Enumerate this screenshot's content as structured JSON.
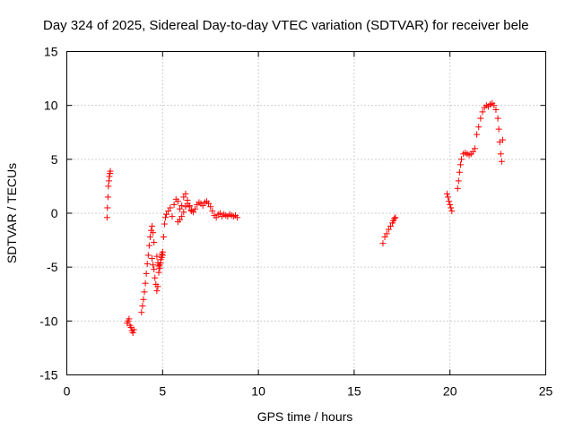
{
  "chart_data": {
    "type": "scatter",
    "title": "Day 324 of 2025, Sidereal Day-to-day VTEC variation (SDTVAR) for receiver bele",
    "xlabel": "GPS time / hours",
    "ylabel": "SDTVAR / TECUs",
    "xlim": [
      0,
      25
    ],
    "ylim": [
      -15,
      15
    ],
    "xticks": [
      "0",
      "5",
      "10",
      "15",
      "20",
      "25"
    ],
    "yticks": [
      "15",
      "10",
      "5",
      "0",
      "-5",
      "-10",
      "-15"
    ],
    "grid": true,
    "marker": "+",
    "marker_color": "#ff0000",
    "series": [
      {
        "name": "SDTVAR",
        "x": [
          2.1,
          2.12,
          2.15,
          2.17,
          2.2,
          2.22,
          2.25,
          2.27,
          3.15,
          3.2,
          3.25,
          3.3,
          3.35,
          3.4,
          3.45,
          3.5,
          3.9,
          3.95,
          4.0,
          4.05,
          4.1,
          4.15,
          4.2,
          4.25,
          4.3,
          4.35,
          4.4,
          4.45,
          4.5,
          4.55,
          4.45,
          4.5,
          4.55,
          4.6,
          4.65,
          4.7,
          4.75,
          4.8,
          4.85,
          4.9,
          4.95,
          5.0,
          4.7,
          4.75,
          4.8,
          4.85,
          4.9,
          4.95,
          5.0,
          5.05,
          5.1,
          5.15,
          5.2,
          5.3,
          5.4,
          5.5,
          5.6,
          5.7,
          5.8,
          5.9,
          6.0,
          6.1,
          6.2,
          6.3,
          6.4,
          6.5,
          5.8,
          5.9,
          6.0,
          6.1,
          6.2,
          6.3,
          6.4,
          6.5,
          6.6,
          6.7,
          6.8,
          6.9,
          7.0,
          7.1,
          7.2,
          7.3,
          7.4,
          7.5,
          7.6,
          7.7,
          7.8,
          7.9,
          8.0,
          8.1,
          8.2,
          8.3,
          8.4,
          8.5,
          8.6,
          8.7,
          8.8,
          8.9,
          16.5,
          16.6,
          16.7,
          16.8,
          16.9,
          17.0,
          17.05,
          17.1,
          17.15,
          19.85,
          19.9,
          19.95,
          20.0,
          20.05,
          20.1,
          20.4,
          20.45,
          20.5,
          20.55,
          20.6,
          20.7,
          20.8,
          20.9,
          21.0,
          21.1,
          21.2,
          21.3,
          21.4,
          21.5,
          21.6,
          21.7,
          21.8,
          21.9,
          22.0,
          22.1,
          22.2,
          22.3,
          22.4,
          22.5,
          22.55,
          22.6,
          22.65,
          22.7,
          22.75
        ],
        "y": [
          -0.4,
          0.5,
          1.5,
          2.5,
          3.0,
          3.4,
          3.7,
          3.9,
          -10.2,
          -10.0,
          -9.8,
          -10.4,
          -10.6,
          -10.9,
          -11.1,
          -10.8,
          -9.2,
          -8.6,
          -8.0,
          -7.3,
          -6.5,
          -5.6,
          -4.7,
          -3.9,
          -3.0,
          -2.2,
          -1.6,
          -1.2,
          -1.8,
          -2.7,
          -4.2,
          -4.8,
          -5.2,
          -6.0,
          -6.6,
          -7.2,
          -6.8,
          -5.5,
          -4.8,
          -4.3,
          -3.8,
          -3.9,
          -4.0,
          -4.6,
          -4.9,
          -5.1,
          -4.6,
          -4.1,
          -3.6,
          -2.2,
          -1.0,
          -0.4,
          -0.1,
          0.2,
          0.5,
          -0.3,
          0.8,
          1.3,
          1.1,
          0.4,
          0.7,
          1.5,
          1.8,
          1.2,
          0.6,
          0.2,
          -0.8,
          -0.6,
          -0.3,
          0.1,
          0.6,
          0.9,
          0.7,
          0.3,
          0.1,
          0.4,
          0.8,
          1.0,
          0.9,
          0.7,
          1.0,
          1.1,
          0.9,
          0.6,
          0.2,
          -0.2,
          -0.4,
          -0.1,
          0.0,
          -0.3,
          -0.1,
          -0.2,
          -0.3,
          -0.1,
          -0.2,
          -0.3,
          -0.2,
          -0.4,
          -2.8,
          -2.2,
          -1.9,
          -1.5,
          -1.2,
          -0.9,
          -0.7,
          -0.5,
          -0.4,
          1.8,
          1.5,
          1.1,
          0.8,
          0.5,
          0.2,
          2.3,
          3.0,
          3.8,
          4.5,
          5.0,
          5.5,
          5.6,
          5.5,
          5.4,
          5.5,
          5.7,
          6.0,
          7.3,
          8.0,
          8.8,
          9.4,
          9.8,
          10.0,
          9.9,
          10.1,
          10.2,
          10.0,
          9.6,
          8.8,
          7.8,
          6.6,
          5.5,
          4.8,
          6.8
        ]
      }
    ]
  }
}
